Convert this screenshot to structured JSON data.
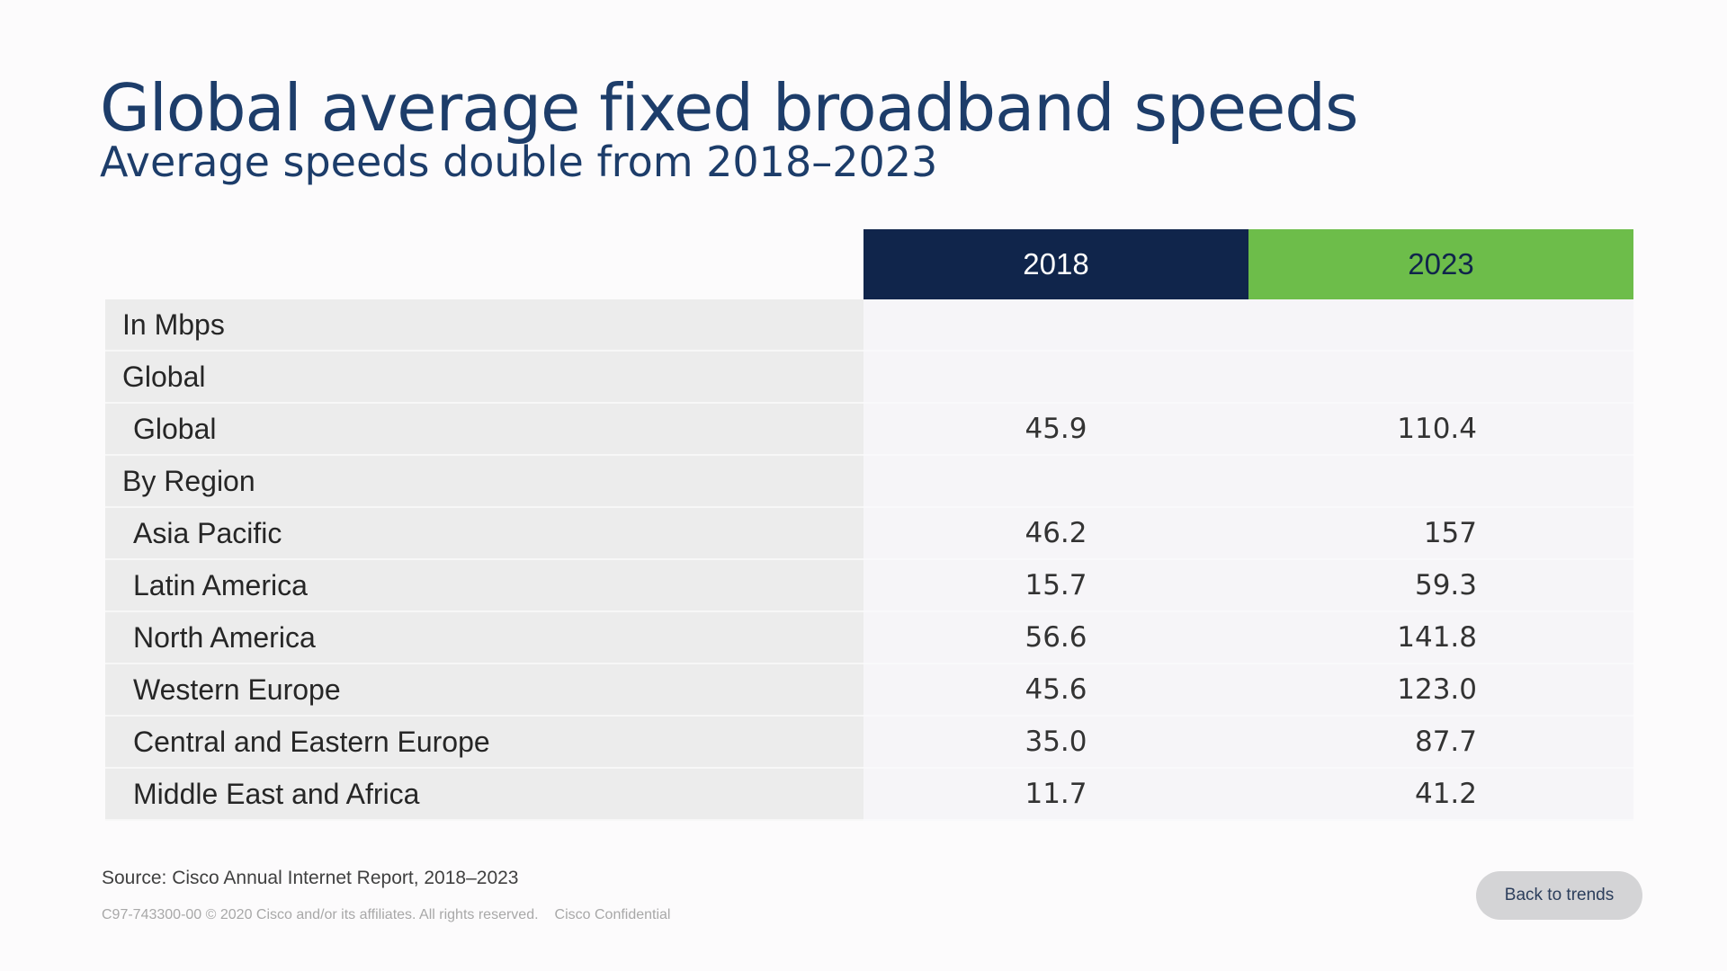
{
  "header": {
    "title": "Global average fixed broadband speeds",
    "subtitle": "Average speeds double from 2018–2023"
  },
  "table": {
    "columns": [
      "2018",
      "2023"
    ],
    "rows": [
      {
        "label": "In Mbps",
        "values": [
          "",
          ""
        ],
        "kind": "section"
      },
      {
        "label": "Global",
        "values": [
          "",
          ""
        ],
        "kind": "section"
      },
      {
        "label": "Global",
        "values": [
          "45.9",
          "110.4"
        ],
        "kind": "item"
      },
      {
        "label": "By Region",
        "values": [
          "",
          ""
        ],
        "kind": "section"
      },
      {
        "label": "Asia Pacific",
        "values": [
          "46.2",
          "157"
        ],
        "kind": "item"
      },
      {
        "label": "Latin America",
        "values": [
          "15.7",
          "59.3"
        ],
        "kind": "item"
      },
      {
        "label": "North America",
        "values": [
          "56.6",
          "141.8"
        ],
        "kind": "item"
      },
      {
        "label": "Western Europe",
        "values": [
          "45.6",
          "123.0"
        ],
        "kind": "item"
      },
      {
        "label": "Central and Eastern Europe",
        "values": [
          "35.0",
          "87.7"
        ],
        "kind": "item"
      },
      {
        "label": "Middle East and Africa",
        "values": [
          "11.7",
          "41.2"
        ],
        "kind": "item"
      }
    ]
  },
  "footer": {
    "source": "Source: Cisco Annual Internet Report, 2018–2023",
    "copyright": "C97-743300-00 © 2020  Cisco and/or its affiliates. All rights reserved.",
    "confidential": "Cisco Confidential",
    "back_button": "Back to trends"
  },
  "colors": {
    "header_2018": "#10254b",
    "header_2023": "#6dbd4a",
    "title": "#1d3d6a"
  }
}
